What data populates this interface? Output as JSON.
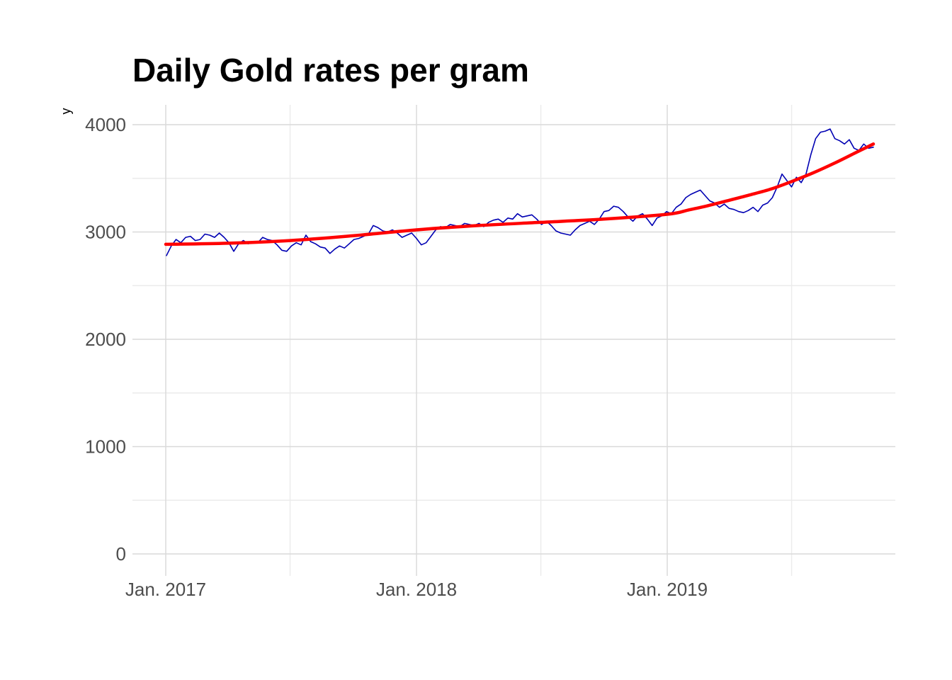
{
  "chart_data": {
    "type": "line",
    "title": "Daily Gold rates per gram",
    "xlabel": "",
    "ylabel": "y",
    "xlim": [
      "2017-01-01",
      "2019-12-31"
    ],
    "ylim": [
      0,
      4000
    ],
    "x_ticks": [
      {
        "label": "Jan. 2017",
        "date": "2017-01-01"
      },
      {
        "label": "Jan. 2018",
        "date": "2018-01-01"
      },
      {
        "label": "Jan. 2019",
        "date": "2019-01-01"
      }
    ],
    "x_minor_ticks": [
      "2017-07-01",
      "2018-07-01",
      "2019-07-01"
    ],
    "y_ticks": [
      0,
      1000,
      2000,
      3000,
      4000
    ],
    "y_minor_ticks": [
      500,
      1500,
      2500,
      3500
    ],
    "grid": true,
    "series": [
      {
        "color": "#0000b3",
        "x": [
          "2017-01-02",
          "2017-01-09",
          "2017-01-16",
          "2017-01-23",
          "2017-01-30",
          "2017-02-06",
          "2017-02-13",
          "2017-02-20",
          "2017-02-27",
          "2017-03-06",
          "2017-03-13",
          "2017-03-20",
          "2017-03-27",
          "2017-04-03",
          "2017-04-10",
          "2017-04-17",
          "2017-04-24",
          "2017-05-01",
          "2017-05-08",
          "2017-05-15",
          "2017-05-22",
          "2017-05-29",
          "2017-06-05",
          "2017-06-12",
          "2017-06-19",
          "2017-06-26",
          "2017-07-03",
          "2017-07-10",
          "2017-07-17",
          "2017-07-24",
          "2017-07-31",
          "2017-08-07",
          "2017-08-14",
          "2017-08-21",
          "2017-08-28",
          "2017-09-04",
          "2017-09-11",
          "2017-09-18",
          "2017-09-25",
          "2017-10-02",
          "2017-10-09",
          "2017-10-16",
          "2017-10-23",
          "2017-10-30",
          "2017-11-06",
          "2017-11-13",
          "2017-11-20",
          "2017-11-27",
          "2017-12-04",
          "2017-12-11",
          "2017-12-18",
          "2017-12-25",
          "2018-01-01",
          "2018-01-08",
          "2018-01-15",
          "2018-01-22",
          "2018-01-29",
          "2018-02-05",
          "2018-02-12",
          "2018-02-19",
          "2018-02-26",
          "2018-03-05",
          "2018-03-12",
          "2018-03-19",
          "2018-03-26",
          "2018-04-02",
          "2018-04-09",
          "2018-04-16",
          "2018-04-23",
          "2018-04-30",
          "2018-05-07",
          "2018-05-14",
          "2018-05-21",
          "2018-05-28",
          "2018-06-04",
          "2018-06-11",
          "2018-06-18",
          "2018-06-25",
          "2018-07-02",
          "2018-07-09",
          "2018-07-16",
          "2018-07-23",
          "2018-07-30",
          "2018-08-06",
          "2018-08-13",
          "2018-08-20",
          "2018-08-27",
          "2018-09-03",
          "2018-09-10",
          "2018-09-17",
          "2018-09-24",
          "2018-10-01",
          "2018-10-08",
          "2018-10-15",
          "2018-10-22",
          "2018-10-29",
          "2018-11-05",
          "2018-11-12",
          "2018-11-19",
          "2018-11-26",
          "2018-12-03",
          "2018-12-10",
          "2018-12-17",
          "2018-12-24",
          "2018-12-31",
          "2019-01-07",
          "2019-01-14",
          "2019-01-21",
          "2019-01-28",
          "2019-02-04",
          "2019-02-11",
          "2019-02-18",
          "2019-02-25",
          "2019-03-04",
          "2019-03-11",
          "2019-03-18",
          "2019-03-25",
          "2019-04-01",
          "2019-04-08",
          "2019-04-15",
          "2019-04-22",
          "2019-04-29",
          "2019-05-06",
          "2019-05-13",
          "2019-05-20",
          "2019-05-27",
          "2019-06-03",
          "2019-06-10",
          "2019-06-17",
          "2019-06-24",
          "2019-07-01",
          "2019-07-08",
          "2019-07-15",
          "2019-07-22",
          "2019-07-29",
          "2019-08-05",
          "2019-08-12",
          "2019-08-19",
          "2019-08-26",
          "2019-09-02",
          "2019-09-09",
          "2019-09-16",
          "2019-09-23",
          "2019-09-30",
          "2019-10-07",
          "2019-10-14",
          "2019-10-21",
          "2019-10-28"
        ],
        "y": [
          2780,
          2870,
          2930,
          2900,
          2950,
          2960,
          2920,
          2930,
          2980,
          2970,
          2950,
          2990,
          2950,
          2900,
          2820,
          2890,
          2920,
          2890,
          2910,
          2900,
          2950,
          2930,
          2920,
          2880,
          2830,
          2820,
          2870,
          2900,
          2880,
          2970,
          2910,
          2890,
          2860,
          2850,
          2800,
          2840,
          2870,
          2850,
          2890,
          2930,
          2940,
          2960,
          2980,
          3060,
          3040,
          3010,
          3000,
          3020,
          2990,
          2950,
          2970,
          2990,
          2940,
          2880,
          2900,
          2960,
          3020,
          3050,
          3040,
          3070,
          3060,
          3050,
          3080,
          3070,
          3060,
          3080,
          3050,
          3090,
          3110,
          3120,
          3090,
          3130,
          3120,
          3170,
          3140,
          3150,
          3160,
          3120,
          3070,
          3100,
          3060,
          3010,
          2990,
          2980,
          2970,
          3020,
          3060,
          3080,
          3100,
          3070,
          3120,
          3190,
          3200,
          3240,
          3230,
          3190,
          3140,
          3100,
          3150,
          3170,
          3120,
          3060,
          3130,
          3150,
          3190,
          3170,
          3230,
          3260,
          3320,
          3350,
          3370,
          3390,
          3340,
          3290,
          3270,
          3230,
          3260,
          3220,
          3210,
          3190,
          3180,
          3200,
          3230,
          3190,
          3250,
          3270,
          3320,
          3420,
          3540,
          3480,
          3420,
          3510,
          3460,
          3540,
          3720,
          3870,
          3930,
          3940,
          3960,
          3870,
          3850,
          3820,
          3860,
          3780,
          3760,
          3820,
          3780,
          3790
        ],
        "smooth": false
      },
      {
        "color": "#ff0000",
        "x": [
          "2017-01-01",
          "2017-04-01",
          "2017-07-01",
          "2017-10-01",
          "2018-01-01",
          "2018-04-01",
          "2018-07-01",
          "2018-10-01",
          "2019-01-01",
          "2019-02-01",
          "2019-03-01",
          "2019-04-01",
          "2019-05-01",
          "2019-06-01",
          "2019-07-01",
          "2019-08-01",
          "2019-09-01",
          "2019-10-01",
          "2019-10-28"
        ],
        "y": [
          2885,
          2895,
          2920,
          2965,
          3020,
          3060,
          3090,
          3120,
          3165,
          3205,
          3245,
          3295,
          3345,
          3400,
          3470,
          3550,
          3640,
          3735,
          3820
        ],
        "smooth": true
      }
    ]
  }
}
